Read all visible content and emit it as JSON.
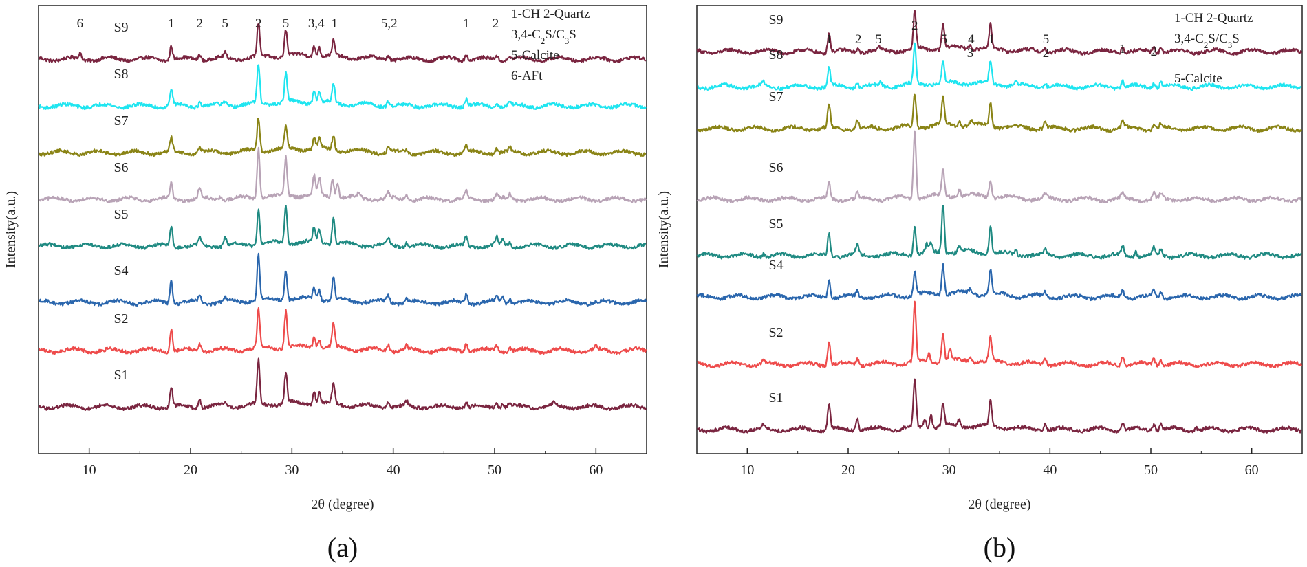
{
  "chart_data": [
    {
      "type": "line",
      "panel_caption": "(a)",
      "xlabel": "2θ (degree)",
      "ylabel": "Intensity(a.u.)",
      "xlim": [
        5,
        65
      ],
      "x_ticks": [
        10,
        20,
        30,
        40,
        50,
        60
      ],
      "y_ticks_shown": false,
      "legend": {
        "position": "top-right",
        "lines": [
          [
            {
              "t": "1-CH  2-Quartz"
            }
          ],
          [
            {
              "t": "3,4-C"
            },
            {
              "t": "2",
              "sub": true
            },
            {
              "t": "S/C"
            },
            {
              "t": "3",
              "sub": true
            },
            {
              "t": "S"
            }
          ],
          [
            {
              "t": "5-Calcite"
            }
          ],
          [
            {
              "t": "6-AFt"
            }
          ]
        ]
      },
      "peak_labels": [
        {
          "text": "6",
          "two_theta": 9.1
        },
        {
          "text": "1",
          "two_theta": 18.1
        },
        {
          "text": "2",
          "two_theta": 20.9
        },
        {
          "text": "5",
          "two_theta": 23.4
        },
        {
          "text": "2",
          "two_theta": 26.7
        },
        {
          "text": "5",
          "two_theta": 29.4
        },
        {
          "text": "3,4",
          "two_theta": 32.4
        },
        {
          "text": "1",
          "two_theta": 34.2
        },
        {
          "text": "5,2",
          "two_theta": 39.6
        },
        {
          "text": "1",
          "two_theta": 47.2
        },
        {
          "text": "2",
          "two_theta": 50.1
        }
      ],
      "series": [
        {
          "name": "S9",
          "color": "#7a2540",
          "peaks": [
            [
              9.1,
              0.35
            ],
            [
              18.1,
              0.95
            ],
            [
              20.9,
              0.4
            ],
            [
              23.4,
              0.3
            ],
            [
              26.7,
              2.2
            ],
            [
              29.4,
              1.75
            ],
            [
              32.2,
              0.7
            ],
            [
              32.7,
              0.6
            ],
            [
              34.1,
              0.95
            ],
            [
              39.5,
              0.3
            ],
            [
              47.2,
              0.4
            ],
            [
              50.2,
              0.3
            ],
            [
              51.5,
              0.2
            ]
          ]
        },
        {
          "name": "S8",
          "color": "#1fe5f0",
          "peaks": [
            [
              18.1,
              1.15
            ],
            [
              20.9,
              0.3
            ],
            [
              23.4,
              0.25
            ],
            [
              26.7,
              2.6
            ],
            [
              29.4,
              1.9
            ],
            [
              32.2,
              0.8
            ],
            [
              32.7,
              0.7
            ],
            [
              34.1,
              1.3
            ],
            [
              39.5,
              0.4
            ],
            [
              47.2,
              0.5
            ],
            [
              50.2,
              0.3
            ],
            [
              51.5,
              0.25
            ]
          ]
        },
        {
          "name": "S7",
          "color": "#8a8416",
          "peaks": [
            [
              18.1,
              0.9
            ],
            [
              20.9,
              0.4
            ],
            [
              26.7,
              2.2
            ],
            [
              29.4,
              1.5
            ],
            [
              32.2,
              0.7
            ],
            [
              32.7,
              0.65
            ],
            [
              34.1,
              1.0
            ],
            [
              39.5,
              0.35
            ],
            [
              41.3,
              0.2
            ],
            [
              47.2,
              0.4
            ],
            [
              50.2,
              0.3
            ],
            [
              51.5,
              0.25
            ]
          ]
        },
        {
          "name": "S6",
          "color": "#b8a3b6",
          "peaks": [
            [
              18.1,
              1.0
            ],
            [
              20.9,
              0.75
            ],
            [
              23.0,
              0.3
            ],
            [
              26.7,
              3.3
            ],
            [
              29.4,
              2.5
            ],
            [
              32.2,
              1.25
            ],
            [
              32.7,
              1.15
            ],
            [
              34.0,
              1.3
            ],
            [
              34.5,
              1.0
            ],
            [
              36.6,
              0.3
            ],
            [
              39.5,
              0.35
            ],
            [
              41.3,
              0.35
            ],
            [
              47.2,
              0.5
            ],
            [
              50.2,
              0.3
            ],
            [
              51.5,
              0.3
            ]
          ]
        },
        {
          "name": "S5",
          "color": "#1f8a82",
          "peaks": [
            [
              18.1,
              1.3
            ],
            [
              20.9,
              0.45
            ],
            [
              23.4,
              0.6
            ],
            [
              26.7,
              2.3
            ],
            [
              29.4,
              2.5
            ],
            [
              32.2,
              0.95
            ],
            [
              32.7,
              0.85
            ],
            [
              34.1,
              1.85
            ],
            [
              39.5,
              0.4
            ],
            [
              41.3,
              0.3
            ],
            [
              47.2,
              0.6
            ],
            [
              50.2,
              0.5
            ],
            [
              50.8,
              0.45
            ],
            [
              51.5,
              0.3
            ]
          ]
        },
        {
          "name": "S4",
          "color": "#2a66ad",
          "peaks": [
            [
              18.1,
              1.55
            ],
            [
              20.9,
              0.45
            ],
            [
              23.4,
              0.2
            ],
            [
              26.7,
              3.0
            ],
            [
              29.4,
              2.0
            ],
            [
              32.2,
              0.7
            ],
            [
              32.7,
              0.65
            ],
            [
              34.1,
              1.5
            ],
            [
              39.5,
              0.45
            ],
            [
              41.3,
              0.25
            ],
            [
              47.2,
              0.55
            ],
            [
              50.2,
              0.45
            ],
            [
              50.8,
              0.45
            ],
            [
              51.5,
              0.3
            ]
          ]
        },
        {
          "name": "S2",
          "color": "#ee4b4b",
          "peaks": [
            [
              18.1,
              1.55
            ],
            [
              20.9,
              0.45
            ],
            [
              26.7,
              2.5
            ],
            [
              29.4,
              2.45
            ],
            [
              32.2,
              0.7
            ],
            [
              32.7,
              0.6
            ],
            [
              34.1,
              1.6
            ],
            [
              39.5,
              0.45
            ],
            [
              41.3,
              0.25
            ],
            [
              47.2,
              0.55
            ],
            [
              50.2,
              0.35
            ],
            [
              51.5,
              0.3
            ],
            [
              60.0,
              0.2
            ]
          ]
        },
        {
          "name": "S1",
          "color": "#7a2540",
          "peaks": [
            [
              18.1,
              1.3
            ],
            [
              20.9,
              0.55
            ],
            [
              23.4,
              0.2
            ],
            [
              26.7,
              2.9
            ],
            [
              29.4,
              2.0
            ],
            [
              32.2,
              0.8
            ],
            [
              32.7,
              0.75
            ],
            [
              34.1,
              1.3
            ],
            [
              39.5,
              0.35
            ],
            [
              41.3,
              0.3
            ],
            [
              47.2,
              0.4
            ],
            [
              50.2,
              0.35
            ],
            [
              50.8,
              0.3
            ],
            [
              51.5,
              0.25
            ],
            [
              55.8,
              0.2
            ]
          ]
        }
      ]
    },
    {
      "type": "line",
      "panel_caption": "(b)",
      "xlabel": "2θ (degree)",
      "ylabel": "Intensity(a.u.)",
      "xlim": [
        5,
        65
      ],
      "x_ticks": [
        10,
        20,
        30,
        40,
        50,
        60
      ],
      "y_ticks_shown": false,
      "legend": {
        "position": "top-right",
        "lines": [
          [
            {
              "t": "1-CH 2-Quartz"
            }
          ],
          [
            {
              "t": "3,4-C"
            },
            {
              "t": "2",
              "sub": true
            },
            {
              "t": "S/C"
            },
            {
              "t": "3",
              "sub": true
            },
            {
              "t": "S"
            }
          ],
          [
            {
              "t": "5-Calcite"
            }
          ]
        ]
      },
      "peak_labels": [
        {
          "text": "1",
          "two_theta": 18.1,
          "row": 0
        },
        {
          "text": "2",
          "two_theta": 21.0,
          "row": 0
        },
        {
          "text": "5",
          "two_theta": 23.0,
          "row": 0
        },
        {
          "text": "2",
          "two_theta": 26.6,
          "row": -1
        },
        {
          "text": "5",
          "two_theta": 29.5,
          "row": 0
        },
        {
          "text": "4",
          "two_theta": 32.2,
          "row": 0,
          "bold": true
        },
        {
          "text": "3",
          "two_theta": 32.1,
          "row": 1
        },
        {
          "text": "1",
          "two_theta": 34.2,
          "row": 0
        },
        {
          "text": "5",
          "two_theta": 39.6,
          "row": 0
        },
        {
          "text": "2",
          "two_theta": 39.6,
          "row": 1
        },
        {
          "text": "1",
          "two_theta": 47.2,
          "row": 0.7
        },
        {
          "text": "2",
          "two_theta": 50.3,
          "row": 0.9
        }
      ],
      "series": [
        {
          "name": "S9",
          "color": "#7a2540",
          "peaks": [
            [
              18.1,
              1.3
            ],
            [
              21.0,
              0.25
            ],
            [
              23.0,
              0.2
            ],
            [
              26.6,
              2.5
            ],
            [
              29.4,
              1.6
            ],
            [
              32.1,
              0.3
            ],
            [
              34.1,
              1.5
            ],
            [
              39.5,
              0.3
            ],
            [
              47.2,
              0.45
            ],
            [
              50.3,
              0.35
            ],
            [
              51.0,
              0.3
            ]
          ]
        },
        {
          "name": "S8",
          "color": "#1fe5f0",
          "peaks": [
            [
              11.6,
              0.25
            ],
            [
              18.1,
              1.2
            ],
            [
              20.9,
              0.3
            ],
            [
              23.2,
              0.2
            ],
            [
              26.6,
              2.6
            ],
            [
              29.4,
              1.4
            ],
            [
              34.1,
              1.5
            ],
            [
              36.6,
              0.3
            ],
            [
              39.5,
              0.3
            ],
            [
              47.2,
              0.4
            ],
            [
              50.3,
              0.3
            ],
            [
              51.0,
              0.3
            ]
          ]
        },
        {
          "name": "S7",
          "color": "#8a8416",
          "peaks": [
            [
              18.1,
              1.55
            ],
            [
              20.9,
              0.6
            ],
            [
              26.6,
              2.2
            ],
            [
              29.4,
              1.7
            ],
            [
              31.0,
              0.3
            ],
            [
              32.2,
              0.3
            ],
            [
              34.1,
              1.6
            ],
            [
              39.5,
              0.4
            ],
            [
              47.2,
              0.45
            ],
            [
              50.3,
              0.3
            ],
            [
              51.0,
              0.3
            ]
          ]
        },
        {
          "name": "S6",
          "color": "#b8a3b6",
          "peaks": [
            [
              18.1,
              1.0
            ],
            [
              20.9,
              0.35
            ],
            [
              26.6,
              4.5
            ],
            [
              29.4,
              1.7
            ],
            [
              31.0,
              0.5
            ],
            [
              34.1,
              1.2
            ],
            [
              39.5,
              0.3
            ],
            [
              47.2,
              0.35
            ],
            [
              50.3,
              0.4
            ],
            [
              51.0,
              0.3
            ]
          ]
        },
        {
          "name": "S5",
          "color": "#1f8a82",
          "peaks": [
            [
              11.6,
              0.2
            ],
            [
              18.1,
              1.5
            ],
            [
              20.9,
              0.7
            ],
            [
              26.6,
              1.8
            ],
            [
              27.8,
              0.5
            ],
            [
              28.2,
              0.6
            ],
            [
              29.4,
              3.2
            ],
            [
              31.0,
              0.35
            ],
            [
              34.1,
              1.9
            ],
            [
              36.6,
              0.35
            ],
            [
              39.5,
              0.3
            ],
            [
              47.2,
              0.6
            ],
            [
              48.5,
              0.35
            ],
            [
              50.3,
              0.5
            ],
            [
              51.0,
              0.4
            ]
          ]
        },
        {
          "name": "S4",
          "color": "#2a66ad",
          "peaks": [
            [
              18.1,
              1.2
            ],
            [
              20.9,
              0.35
            ],
            [
              26.6,
              1.6
            ],
            [
              29.4,
              2.0
            ],
            [
              32.1,
              0.25
            ],
            [
              34.1,
              1.6
            ],
            [
              39.5,
              0.3
            ],
            [
              47.2,
              0.5
            ],
            [
              50.3,
              0.4
            ],
            [
              51.0,
              0.3
            ]
          ]
        },
        {
          "name": "S2",
          "color": "#ee4b4b",
          "peaks": [
            [
              11.6,
              0.2
            ],
            [
              18.1,
              1.5
            ],
            [
              20.9,
              0.45
            ],
            [
              26.6,
              3.9
            ],
            [
              28.0,
              0.5
            ],
            [
              29.4,
              1.85
            ],
            [
              30.1,
              0.7
            ],
            [
              32.1,
              0.3
            ],
            [
              34.1,
              1.6
            ],
            [
              39.5,
              0.5
            ],
            [
              47.2,
              0.6
            ],
            [
              50.3,
              0.4
            ],
            [
              51.0,
              0.35
            ]
          ]
        },
        {
          "name": "S1",
          "color": "#7a2540",
          "peaks": [
            [
              11.6,
              0.25
            ],
            [
              18.1,
              1.7
            ],
            [
              20.9,
              0.85
            ],
            [
              26.6,
              3.2
            ],
            [
              27.6,
              0.5
            ],
            [
              28.2,
              0.85
            ],
            [
              29.4,
              1.5
            ],
            [
              31.0,
              0.4
            ],
            [
              34.1,
              1.7
            ],
            [
              39.5,
              0.45
            ],
            [
              47.2,
              0.55
            ],
            [
              50.3,
              0.45
            ],
            [
              51.0,
              0.4
            ],
            [
              54.5,
              0.2
            ]
          ]
        }
      ]
    }
  ]
}
